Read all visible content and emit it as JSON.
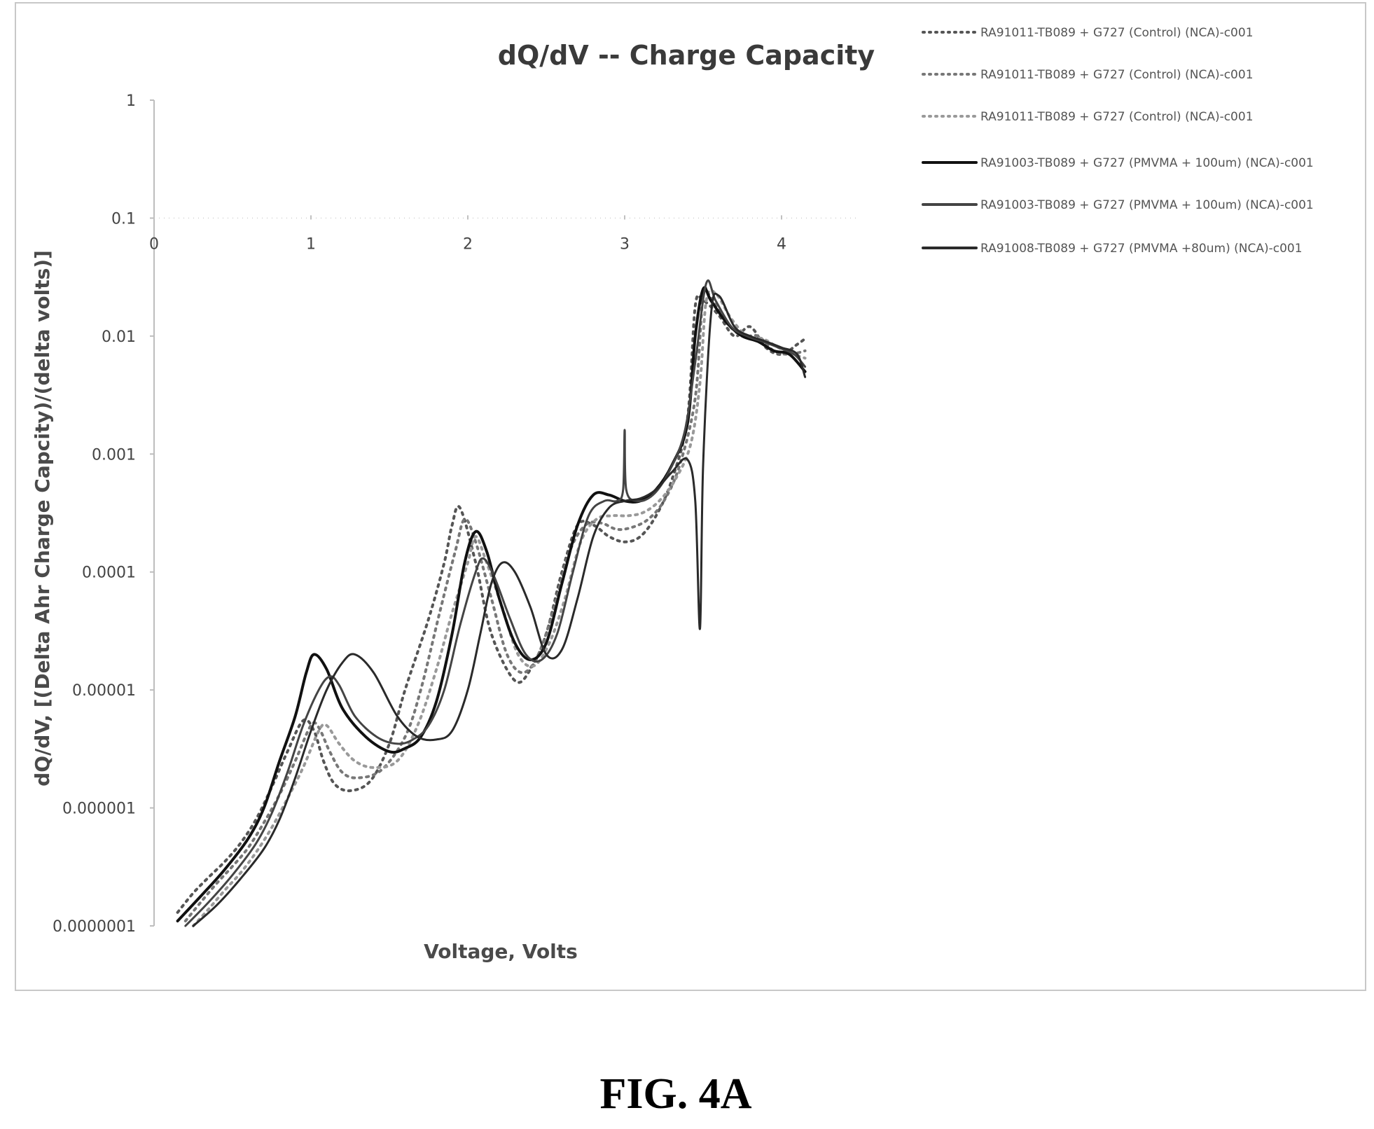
{
  "figure_label": "FIG. 4A",
  "chart_data": {
    "type": "line",
    "title": "dQ/dV -- Charge Capacity",
    "xlabel": "Voltage, Volts",
    "ylabel": "dQ/dV,   [(Delta Ahr Charge Capcity)/(delta volts)]",
    "xlim": [
      0,
      4.5
    ],
    "ylim": [
      1e-07,
      1
    ],
    "y_scale": "log",
    "x_ticks": [
      0,
      1,
      2,
      3,
      4
    ],
    "x_tick_labels": [
      "0",
      "1",
      "2",
      "3",
      "4"
    ],
    "y_ticks": [
      1,
      0.1,
      0.01,
      0.001,
      0.0001,
      1e-05,
      1e-06,
      1e-07
    ],
    "y_tick_labels": [
      "1",
      "0.1",
      "0.01",
      "0.001",
      "0.0001",
      "0.00001",
      "0.000001",
      "0.0000001"
    ],
    "x_axis_position": "crosses at y = 0.1",
    "grid": false,
    "legend_position": "top-right",
    "series": [
      {
        "name": "RA91011-TB089 + G727 (Control) (NCA)-c001",
        "style": "dotted",
        "color": "#555555",
        "x": [
          0.15,
          0.25,
          0.35,
          0.45,
          0.55,
          0.65,
          0.75,
          0.85,
          0.95,
          1.02,
          1.08,
          1.15,
          1.25,
          1.38,
          1.5,
          1.6,
          1.75,
          1.85,
          1.9,
          1.95,
          2.05,
          2.15,
          2.3,
          2.4,
          2.5,
          2.6,
          2.7,
          2.8,
          2.9,
          3.0,
          3.1,
          3.2,
          3.3,
          3.4,
          3.45,
          3.5,
          3.6,
          3.7,
          3.8,
          3.9,
          4.0,
          4.1,
          4.15
        ],
        "y": [
          1.3e-07,
          1.9e-07,
          2.6e-07,
          3.5e-07,
          5e-07,
          8e-07,
          1.5e-06,
          3e-06,
          5.5e-06,
          4.5e-06,
          2.5e-06,
          1.6e-06,
          1.4e-06,
          1.7e-06,
          3.5e-06,
          1e-05,
          4e-05,
          0.00012,
          0.00025,
          0.00035,
          0.00012,
          3e-05,
          1.2e-05,
          1.5e-05,
          3e-05,
          0.0001,
          0.00025,
          0.00025,
          0.0002,
          0.00018,
          0.0002,
          0.0003,
          0.0006,
          0.002,
          0.018,
          0.02,
          0.015,
          0.01,
          0.012,
          0.008,
          0.007,
          0.0085,
          0.0095
        ]
      },
      {
        "name": "RA91011-TB089 + G727 (Control) (NCA)-c001",
        "style": "dotted",
        "color": "#777777",
        "x": [
          0.2,
          0.3,
          0.4,
          0.5,
          0.6,
          0.7,
          0.8,
          0.9,
          1.0,
          1.05,
          1.12,
          1.2,
          1.3,
          1.45,
          1.6,
          1.7,
          1.82,
          1.92,
          1.98,
          2.05,
          2.15,
          2.25,
          2.35,
          2.45,
          2.55,
          2.65,
          2.75,
          2.85,
          2.95,
          3.05,
          3.15,
          3.25,
          3.35,
          3.45,
          3.5,
          3.55,
          3.65,
          3.75,
          3.85,
          3.95,
          4.05,
          4.15
        ],
        "y": [
          1.1e-07,
          1.6e-07,
          2.3e-07,
          3.2e-07,
          4.6e-07,
          7.5e-07,
          1.3e-06,
          2.5e-06,
          5e-06,
          4.8e-06,
          3e-06,
          2e-06,
          1.8e-06,
          2.1e-06,
          4e-06,
          1e-05,
          4.5e-05,
          0.00015,
          0.00028,
          0.00018,
          6e-05,
          2e-05,
          1.4e-05,
          2e-05,
          5e-05,
          0.00015,
          0.00025,
          0.00026,
          0.00023,
          0.00024,
          0.00028,
          0.0004,
          0.0008,
          0.003,
          0.022,
          0.021,
          0.013,
          0.01,
          0.01,
          0.0075,
          0.007,
          0.0075
        ]
      },
      {
        "name": "RA91011-TB089 + G727 (Control) (NCA)-c001",
        "style": "dotted",
        "color": "#999999",
        "x": [
          0.25,
          0.35,
          0.45,
          0.55,
          0.65,
          0.75,
          0.85,
          0.95,
          1.05,
          1.1,
          1.18,
          1.28,
          1.4,
          1.55,
          1.68,
          1.8,
          1.9,
          2.0,
          2.05,
          2.12,
          2.22,
          2.32,
          2.42,
          2.52,
          2.62,
          2.72,
          2.82,
          2.92,
          3.02,
          3.12,
          3.22,
          3.32,
          3.42,
          3.48,
          3.52,
          3.58,
          3.68,
          3.78,
          3.88,
          3.98,
          4.08,
          4.15
        ],
        "y": [
          1e-07,
          1.4e-07,
          2e-07,
          2.8e-07,
          4.2e-07,
          6.8e-07,
          1.2e-06,
          2.2e-06,
          4.5e-06,
          5e-06,
          3.5e-06,
          2.5e-06,
          2.2e-06,
          2.5e-06,
          5e-06,
          1.5e-05,
          4.5e-05,
          0.00012,
          0.0002,
          0.00012,
          5e-05,
          2e-05,
          1.6e-05,
          2.5e-05,
          6e-05,
          0.00018,
          0.00028,
          0.0003,
          0.0003,
          0.00032,
          0.0004,
          0.0006,
          0.0012,
          0.004,
          0.02,
          0.023,
          0.014,
          0.01,
          0.0095,
          0.008,
          0.007,
          0.0065
        ]
      },
      {
        "name": "RA91003-TB089 + G727 (PMVMA + 100um) (NCA)-c001",
        "style": "solid",
        "color": "#111111",
        "width": 4,
        "x": [
          0.15,
          0.3,
          0.45,
          0.6,
          0.7,
          0.8,
          0.9,
          0.97,
          1.02,
          1.1,
          1.2,
          1.35,
          1.5,
          1.6,
          1.7,
          1.8,
          1.9,
          1.98,
          2.05,
          2.12,
          2.2,
          2.3,
          2.4,
          2.5,
          2.6,
          2.7,
          2.8,
          2.9,
          3.0,
          3.1,
          3.2,
          3.3,
          3.4,
          3.45,
          3.5,
          3.55,
          3.65,
          3.75,
          3.85,
          3.95,
          4.05,
          4.15
        ],
        "y": [
          1.1e-07,
          1.8e-07,
          3e-07,
          5.5e-07,
          1e-06,
          2.5e-06,
          6e-06,
          1.4e-05,
          2e-05,
          1.5e-05,
          7e-06,
          4e-06,
          3e-06,
          3.2e-06,
          4e-06,
          8e-06,
          3e-05,
          0.00012,
          0.00022,
          0.00015,
          6e-05,
          2.5e-05,
          1.8e-05,
          2.5e-05,
          8e-05,
          0.00025,
          0.00045,
          0.00045,
          0.0004,
          0.0004,
          0.0005,
          0.0008,
          0.0018,
          0.01,
          0.025,
          0.02,
          0.013,
          0.01,
          0.009,
          0.0075,
          0.007,
          0.005
        ]
      },
      {
        "name": "RA91003-TB089 + G727 (PMVMA + 100um) (NCA)-c001",
        "style": "solid",
        "color": "#444444",
        "width": 3,
        "x": [
          0.2,
          0.35,
          0.5,
          0.65,
          0.75,
          0.85,
          0.95,
          1.05,
          1.12,
          1.18,
          1.28,
          1.42,
          1.55,
          1.65,
          1.75,
          1.85,
          1.95,
          2.05,
          2.1,
          2.17,
          2.27,
          2.37,
          2.47,
          2.57,
          2.67,
          2.77,
          2.87,
          2.95,
          2.99,
          3.0,
          3.01,
          3.08,
          3.18,
          3.28,
          3.38,
          3.45,
          3.52,
          3.58,
          3.68,
          3.78,
          3.88,
          3.98,
          4.08,
          4.15
        ],
        "y": [
          1e-07,
          1.6e-07,
          2.7e-07,
          5e-07,
          9e-07,
          2e-06,
          5e-06,
          1e-05,
          1.3e-05,
          1.1e-05,
          6e-06,
          4e-06,
          3.5e-06,
          3.8e-06,
          5e-06,
          1e-05,
          3.5e-05,
          0.0001,
          0.00013,
          9e-05,
          4e-05,
          2e-05,
          1.8e-05,
          3e-05,
          0.0001,
          0.0003,
          0.0004,
          0.0004,
          0.0005,
          0.0016,
          0.0005,
          0.0004,
          0.00045,
          0.0007,
          0.0015,
          0.006,
          0.028,
          0.02,
          0.012,
          0.01,
          0.009,
          0.008,
          0.007,
          0.0055
        ]
      },
      {
        "name": "RA91008-TB089 + G727  (PMVMA +80um) (NCA)-c001",
        "style": "solid",
        "color": "#2a2a2a",
        "width": 3,
        "x": [
          0.25,
          0.4,
          0.55,
          0.7,
          0.8,
          0.9,
          1.0,
          1.1,
          1.2,
          1.28,
          1.4,
          1.55,
          1.68,
          1.8,
          1.9,
          2.0,
          2.08,
          2.15,
          2.22,
          2.3,
          2.4,
          2.5,
          2.6,
          2.7,
          2.8,
          2.9,
          3.0,
          3.1,
          3.2,
          3.3,
          3.4,
          3.45,
          3.48,
          3.5,
          3.55,
          3.6,
          3.7,
          3.8,
          3.9,
          4.0,
          4.1,
          4.15
        ],
        "y": [
          1e-07,
          1.5e-07,
          2.5e-07,
          4.5e-07,
          8e-07,
          1.8e-06,
          4.5e-06,
          1e-05,
          1.7e-05,
          2e-05,
          1.4e-05,
          6e-06,
          4e-06,
          3.8e-06,
          4.5e-06,
          1e-05,
          3e-05,
          8e-05,
          0.00012,
          0.0001,
          5e-05,
          2e-05,
          2.2e-05,
          6e-05,
          0.0002,
          0.00035,
          0.0004,
          0.00042,
          0.0005,
          0.0007,
          0.0009,
          0.0004,
          3.3e-05,
          0.0008,
          0.015,
          0.022,
          0.012,
          0.01,
          0.009,
          0.008,
          0.007,
          0.0045
        ]
      }
    ]
  }
}
